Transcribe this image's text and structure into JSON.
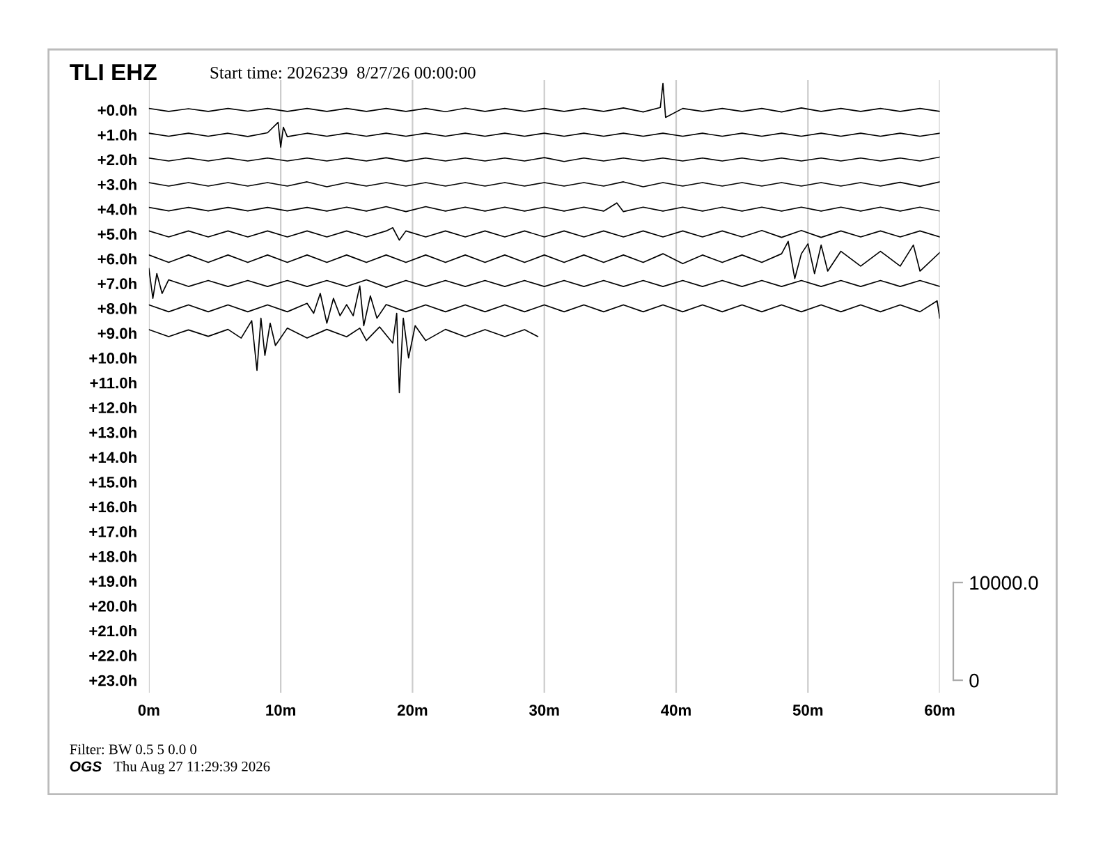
{
  "chart_data": {
    "type": "line",
    "title": "TLI EHZ",
    "subtitle": "Start time: 2026239  8/27/26 00:00:00",
    "annotations": [
      "Filter: BW 0.5 5 0.0 0",
      "OGS",
      "Thu Aug 27 11:29:39 2026"
    ],
    "xlim": [
      0,
      60
    ],
    "xticks": [
      {
        "value": 0,
        "label": "0m"
      },
      {
        "value": 10,
        "label": "10m"
      },
      {
        "value": 20,
        "label": "20m"
      },
      {
        "value": 30,
        "label": "30m"
      },
      {
        "value": 40,
        "label": "40m"
      },
      {
        "value": 50,
        "label": "50m"
      },
      {
        "value": 60,
        "label": "60m"
      }
    ],
    "ylim": [
      23.5,
      -1.2
    ],
    "yticks": [
      {
        "value": 0,
        "label": "+0.0h"
      },
      {
        "value": 1,
        "label": "+1.0h"
      },
      {
        "value": 2,
        "label": "+2.0h"
      },
      {
        "value": 3,
        "label": "+3.0h"
      },
      {
        "value": 4,
        "label": "+4.0h"
      },
      {
        "value": 5,
        "label": "+5.0h"
      },
      {
        "value": 6,
        "label": "+6.0h"
      },
      {
        "value": 7,
        "label": "+7.0h"
      },
      {
        "value": 8,
        "label": "+8.0h"
      },
      {
        "value": 9,
        "label": "+9.0h"
      },
      {
        "value": 10,
        "label": "+10.0h"
      },
      {
        "value": 11,
        "label": "+11.0h"
      },
      {
        "value": 12,
        "label": "+12.0h"
      },
      {
        "value": 13,
        "label": "+13.0h"
      },
      {
        "value": 14,
        "label": "+14.0h"
      },
      {
        "value": 15,
        "label": "+15.0h"
      },
      {
        "value": 16,
        "label": "+16.0h"
      },
      {
        "value": 17,
        "label": "+17.0h"
      },
      {
        "value": 18,
        "label": "+18.0h"
      },
      {
        "value": 19,
        "label": "+19.0h"
      },
      {
        "value": 20,
        "label": "+20.0h"
      },
      {
        "value": 21,
        "label": "+21.0h"
      },
      {
        "value": 22,
        "label": "+22.0h"
      },
      {
        "value": 23,
        "label": "+23.0h"
      }
    ],
    "y2lim": [
      -1269,
      61420
    ],
    "y2ticks": [
      0,
      {
        "value": 10000,
        "label": "10000.0"
      }
    ],
    "grid": "x",
    "series": [
      {
        "color": "#000000",
        "x": [
          0,
          1.5,
          3,
          4.5,
          6,
          7.5,
          9,
          10.5,
          12,
          13.5,
          15,
          16.5,
          18,
          19.5,
          21,
          22.5,
          24,
          25.5,
          27,
          28.5,
          30,
          31.5,
          33,
          34.5,
          36,
          37.5,
          38.8,
          39,
          39.2,
          40.5,
          42,
          43.5,
          45,
          46.5,
          48,
          49.5,
          51,
          52.5,
          54,
          55.5,
          57,
          58.5,
          60
        ],
        "values": [
          -0.06,
          0.06,
          -0.05,
          0.06,
          -0.06,
          0.05,
          -0.06,
          0.06,
          -0.06,
          0.06,
          -0.06,
          0.06,
          -0.06,
          0.06,
          -0.06,
          0.07,
          -0.07,
          0.06,
          -0.06,
          0.06,
          -0.06,
          0.06,
          -0.06,
          0.06,
          -0.08,
          0.08,
          -0.1,
          -1.07,
          0.3,
          -0.06,
          0.06,
          -0.06,
          0.06,
          -0.06,
          0.08,
          -0.08,
          0.06,
          -0.06,
          0.06,
          -0.06,
          0.06,
          -0.06,
          0.06
        ]
      },
      {
        "color": "#000000",
        "x": [
          0,
          1.5,
          3,
          4.5,
          6,
          7.5,
          9,
          9.8,
          10,
          10.2,
          10.5,
          12,
          13.5,
          15,
          16.5,
          18,
          19.5,
          21,
          22.5,
          24,
          25.5,
          27,
          28.5,
          30,
          31.5,
          33,
          34.5,
          36,
          37.5,
          39,
          40.5,
          42,
          43.5,
          45,
          46.5,
          48,
          49.5,
          51,
          52.5,
          54,
          55.5,
          57,
          58.5,
          60
        ],
        "values": [
          0.94,
          1.06,
          0.94,
          1.06,
          0.94,
          1.07,
          0.92,
          0.5,
          1.5,
          0.7,
          1.08,
          0.94,
          1.06,
          0.94,
          1.06,
          0.94,
          1.06,
          0.94,
          1.06,
          0.94,
          1.06,
          0.94,
          1.06,
          0.94,
          1.06,
          0.94,
          1.06,
          0.94,
          1.06,
          0.94,
          1.06,
          0.94,
          1.06,
          0.94,
          1.06,
          0.94,
          1.06,
          0.94,
          1.06,
          0.94,
          1.06,
          0.94,
          1.06,
          0.94
        ]
      },
      {
        "color": "#000000",
        "x": [
          0,
          1.5,
          3,
          4.5,
          6,
          7.5,
          9,
          10.5,
          12,
          13.5,
          15,
          16.5,
          18,
          19.5,
          21,
          22.5,
          24,
          25.5,
          27,
          28.5,
          30,
          31.5,
          33,
          34.5,
          36,
          37.5,
          39,
          40.5,
          42,
          43.5,
          45,
          46.5,
          48,
          49.5,
          51,
          52.5,
          54,
          55.5,
          57,
          58.5,
          60
        ],
        "values": [
          1.94,
          2.06,
          1.94,
          2.06,
          1.94,
          2.06,
          1.94,
          2.06,
          1.94,
          2.06,
          1.94,
          2.06,
          1.93,
          2.07,
          1.94,
          2.06,
          1.94,
          2.06,
          1.94,
          2.06,
          1.92,
          2.08,
          1.94,
          2.06,
          1.94,
          2.06,
          1.94,
          2.06,
          1.94,
          2.06,
          1.94,
          2.06,
          1.94,
          2.06,
          1.94,
          2.06,
          1.94,
          2.06,
          1.94,
          2.06,
          1.9
        ]
      },
      {
        "color": "#000000",
        "x": [
          0,
          1.5,
          3,
          4.5,
          6,
          7.5,
          9,
          10.5,
          12,
          13.5,
          15,
          16.5,
          18,
          19.5,
          21,
          22.5,
          24,
          25.5,
          27,
          28.5,
          30,
          31.5,
          33,
          34.5,
          36,
          37.5,
          39,
          40.5,
          42,
          43.5,
          45,
          46.5,
          48,
          49.5,
          51,
          52.5,
          54,
          55.5,
          57,
          58.5,
          60
        ],
        "values": [
          2.93,
          3.07,
          2.93,
          3.07,
          2.93,
          3.07,
          2.93,
          3.07,
          2.9,
          3.1,
          2.93,
          3.07,
          2.93,
          3.07,
          2.93,
          3.07,
          2.93,
          3.07,
          2.93,
          3.07,
          2.93,
          3.07,
          2.93,
          3.07,
          2.9,
          3.1,
          2.93,
          3.07,
          2.93,
          3.07,
          2.93,
          3.07,
          2.93,
          3.07,
          2.93,
          3.07,
          2.93,
          3.07,
          2.92,
          3.08,
          2.9
        ]
      },
      {
        "color": "#000000",
        "x": [
          0,
          1.5,
          3,
          4.5,
          6,
          7.5,
          9,
          10.5,
          12,
          13.5,
          15,
          16.5,
          18,
          19.5,
          21,
          22.5,
          24,
          25.5,
          27,
          28.5,
          30,
          31.5,
          33,
          34.5,
          35.5,
          36,
          37.5,
          39,
          40.5,
          42,
          43.5,
          45,
          46.5,
          48,
          49.5,
          51,
          52.5,
          54,
          55.5,
          57,
          58.5,
          60
        ],
        "values": [
          3.93,
          4.07,
          3.93,
          4.07,
          3.93,
          4.07,
          3.93,
          4.07,
          3.93,
          4.08,
          3.92,
          4.08,
          3.9,
          4.1,
          3.9,
          4.08,
          3.92,
          4.08,
          3.92,
          4.08,
          3.92,
          4.08,
          3.92,
          4.08,
          3.75,
          4.1,
          3.92,
          4.08,
          3.92,
          4.08,
          3.92,
          4.08,
          3.92,
          4.08,
          3.92,
          4.08,
          3.92,
          4.08,
          3.92,
          4.08,
          3.92,
          4.08
        ]
      },
      {
        "color": "#000000",
        "x": [
          0,
          1.5,
          3,
          4.5,
          6,
          7.5,
          9,
          10.5,
          12,
          13.5,
          15,
          16.5,
          18,
          18.5,
          19,
          19.5,
          21,
          22.5,
          24,
          25.5,
          27,
          28.5,
          30,
          31.5,
          33,
          34.5,
          36,
          37.5,
          39,
          40.5,
          42,
          43.5,
          45,
          46.5,
          48,
          49.5,
          51,
          52.5,
          54,
          55.5,
          57,
          58.5,
          60
        ],
        "values": [
          4.88,
          5.12,
          4.88,
          5.12,
          4.88,
          5.12,
          4.88,
          5.12,
          4.88,
          5.12,
          4.88,
          5.12,
          4.88,
          4.75,
          5.25,
          4.88,
          5.12,
          4.88,
          5.12,
          4.88,
          5.12,
          4.88,
          5.12,
          4.88,
          5.12,
          4.88,
          5.12,
          4.88,
          5.12,
          4.88,
          5.12,
          4.88,
          5.12,
          4.86,
          5.14,
          4.86,
          5.14,
          4.88,
          5.12,
          4.88,
          5.12,
          4.88,
          5.12
        ]
      },
      {
        "color": "#000000",
        "x": [
          0,
          1.5,
          3,
          4.5,
          6,
          7.5,
          9,
          10.5,
          12,
          13.5,
          15,
          16.5,
          18,
          19.5,
          21,
          22.5,
          24,
          25.5,
          27,
          28.5,
          30,
          31.5,
          33,
          34.5,
          36,
          37.5,
          39,
          40.5,
          42,
          43.5,
          45,
          46.5,
          48,
          48.5,
          49,
          49.5,
          50,
          50.5,
          51,
          51.5,
          52.5,
          54,
          55.5,
          57,
          58,
          58.5,
          60
        ],
        "values": [
          5.85,
          6.15,
          5.85,
          6.15,
          5.85,
          6.15,
          5.85,
          6.15,
          5.85,
          6.15,
          5.85,
          6.15,
          5.85,
          6.15,
          5.85,
          6.15,
          5.85,
          6.15,
          5.85,
          6.15,
          5.85,
          6.15,
          5.85,
          6.15,
          5.85,
          6.15,
          5.8,
          6.2,
          5.85,
          6.15,
          5.85,
          6.15,
          5.8,
          5.3,
          6.8,
          5.8,
          5.4,
          6.6,
          5.45,
          6.5,
          5.7,
          6.3,
          5.7,
          6.3,
          5.45,
          6.5,
          5.75
        ]
      },
      {
        "color": "#000000",
        "x": [
          0,
          0.3,
          0.6,
          1,
          1.5,
          3,
          4.5,
          6,
          7.5,
          9,
          10.5,
          12,
          13.5,
          15,
          16.5,
          18,
          19.5,
          21,
          22.5,
          24,
          25.5,
          27,
          28.5,
          30,
          31.5,
          33,
          34.5,
          36,
          37.5,
          39,
          40.5,
          42,
          43.5,
          45,
          46.5,
          48,
          49.5,
          51,
          52.5,
          54,
          55.5,
          57,
          58.5,
          60
        ],
        "values": [
          6.4,
          7.6,
          6.6,
          7.4,
          6.85,
          7.12,
          6.88,
          7.12,
          6.88,
          7.12,
          6.88,
          7.12,
          6.88,
          7.12,
          6.85,
          7.15,
          6.88,
          7.12,
          6.88,
          7.12,
          6.88,
          7.12,
          6.88,
          7.12,
          6.88,
          7.12,
          6.88,
          7.12,
          6.88,
          7.12,
          6.88,
          7.12,
          6.88,
          7.12,
          6.88,
          7.12,
          6.88,
          7.12,
          6.88,
          7.12,
          6.88,
          7.12,
          6.88,
          7.12
        ]
      },
      {
        "color": "#000000",
        "x": [
          0,
          1.5,
          3,
          4.5,
          6,
          7.5,
          9,
          10.5,
          12,
          12.5,
          13,
          13.5,
          14,
          14.5,
          15,
          15.5,
          16,
          16.3,
          16.8,
          17.3,
          18,
          19.5,
          21,
          22.5,
          24,
          25.5,
          27,
          28.5,
          30,
          31.5,
          33,
          34.5,
          36,
          37.5,
          39,
          40.5,
          42,
          43.5,
          45,
          46.5,
          48,
          49.5,
          51,
          52.5,
          54,
          55.5,
          57,
          58.5,
          59.8,
          60
        ],
        "values": [
          7.86,
          8.14,
          7.86,
          8.14,
          7.86,
          8.14,
          7.86,
          8.14,
          7.8,
          8.2,
          7.4,
          8.6,
          7.6,
          8.3,
          7.85,
          8.3,
          7.1,
          8.7,
          7.5,
          8.4,
          7.85,
          8.14,
          7.86,
          8.14,
          7.86,
          8.14,
          7.86,
          8.14,
          7.86,
          8.14,
          7.86,
          8.14,
          7.86,
          8.14,
          7.86,
          8.14,
          7.86,
          8.14,
          7.86,
          8.14,
          7.86,
          8.14,
          7.86,
          8.14,
          7.86,
          8.14,
          7.86,
          8.14,
          7.7,
          8.4
        ]
      },
      {
        "color": "#000000",
        "x": [
          0,
          1.5,
          3,
          4.5,
          6,
          7,
          7.8,
          8.2,
          8.5,
          8.8,
          9.2,
          9.6,
          10.5,
          12,
          13.5,
          15,
          16,
          16.5,
          17.5,
          18.5,
          18.8,
          19,
          19.3,
          19.7,
          20.2,
          21,
          22.5,
          24,
          25.5,
          27,
          28.5,
          29.5
        ],
        "values": [
          8.86,
          9.14,
          8.87,
          9.13,
          8.85,
          9.2,
          8.5,
          10.5,
          8.4,
          9.9,
          8.6,
          9.5,
          8.8,
          9.2,
          8.85,
          9.15,
          8.8,
          9.3,
          8.75,
          9.4,
          8.2,
          11.4,
          8.4,
          10.0,
          8.7,
          9.3,
          8.85,
          9.15,
          8.86,
          9.14,
          8.86,
          9.14
        ]
      }
    ]
  }
}
